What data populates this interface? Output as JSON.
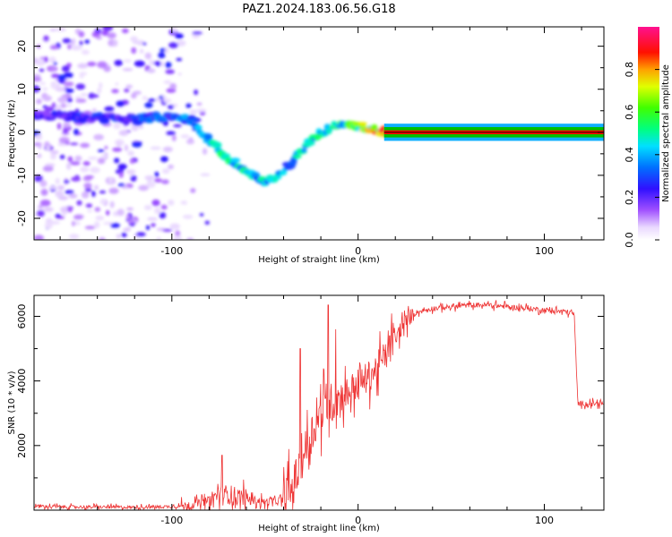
{
  "title": "PAZ1.2024.183.06.56.G18",
  "chart_data": [
    {
      "type": "heatmap",
      "name": "spectrogram",
      "xlabel": "Height of straight line (km)",
      "ylabel": "Frequency (Hz)",
      "xlim": [
        -174,
        132
      ],
      "ylim": [
        -25,
        24.5
      ],
      "xticks": [
        -100,
        0,
        100
      ],
      "yticks": [
        -20,
        -10,
        0,
        10,
        20
      ],
      "colorbar": {
        "label": "Normalized spectral amplitude",
        "range": [
          0.0,
          1.0
        ],
        "ticks": [
          0.0,
          0.2,
          0.4,
          0.6,
          0.8
        ],
        "tick_labels": [
          "0.0",
          "0.2",
          "0.4",
          "0.6",
          "0.8"
        ],
        "colormap": "rainbow (white-violet-blue-cyan-green-yellow-red-pink)"
      },
      "ridge": {
        "x": [
          -174,
          -120,
          -110,
          -100,
          -90,
          -80,
          -70,
          -60,
          -50,
          -40,
          -30,
          -20,
          -10,
          0,
          10,
          20,
          60,
          100,
          132
        ],
        "frequency": [
          4,
          3,
          3.5,
          3.5,
          3,
          -2,
          -6,
          -9,
          -12,
          -9,
          -4,
          0,
          2,
          1.5,
          0.5,
          0,
          0,
          0,
          0
        ],
        "amplitude": [
          0.25,
          0.3,
          0.35,
          0.35,
          0.45,
          0.5,
          0.55,
          0.55,
          0.5,
          0.45,
          0.5,
          0.55,
          0.6,
          0.7,
          0.85,
          0.95,
          0.95,
          0.9,
          0.85
        ]
      },
      "noise_region_x": [
        -174,
        -100
      ],
      "colors": {
        "line_band": "#ff0000",
        "high_band": "#00c000"
      }
    },
    {
      "type": "line",
      "name": "snr",
      "xlabel": "Height of straight line (km)",
      "ylabel": "SNR (10 * v/v)",
      "xlim": [
        -174,
        132
      ],
      "ylim": [
        0,
        6650
      ],
      "xticks": [
        -100,
        0,
        100
      ],
      "yticks": [
        2000,
        4000,
        6000
      ],
      "color": "#ee3333",
      "envelope": {
        "x": [
          -174,
          -150,
          -120,
          -100,
          -90,
          -80,
          -75,
          -70,
          -60,
          -50,
          -40,
          -35,
          -30,
          -25,
          -20,
          -15,
          -10,
          -5,
          0,
          5,
          10,
          15,
          20,
          25,
          30,
          40,
          50,
          60,
          70,
          80,
          90,
          100,
          110,
          116,
          118,
          132
        ],
        "y": [
          120,
          100,
          90,
          110,
          150,
          300,
          450,
          500,
          350,
          250,
          300,
          700,
          1600,
          2400,
          3000,
          3300,
          3500,
          3700,
          3900,
          4100,
          4400,
          4800,
          5300,
          5800,
          6100,
          6250,
          6300,
          6350,
          6350,
          6300,
          6250,
          6200,
          6150,
          6100,
          3300,
          3300
        ]
      },
      "spikes": [
        {
          "x": -73,
          "y": 1700
        },
        {
          "x": -31,
          "y": 5000
        },
        {
          "x": -16,
          "y": 6350
        },
        {
          "x": -12,
          "y": 5600
        },
        {
          "x": 17,
          "y": 5400
        }
      ]
    }
  ]
}
